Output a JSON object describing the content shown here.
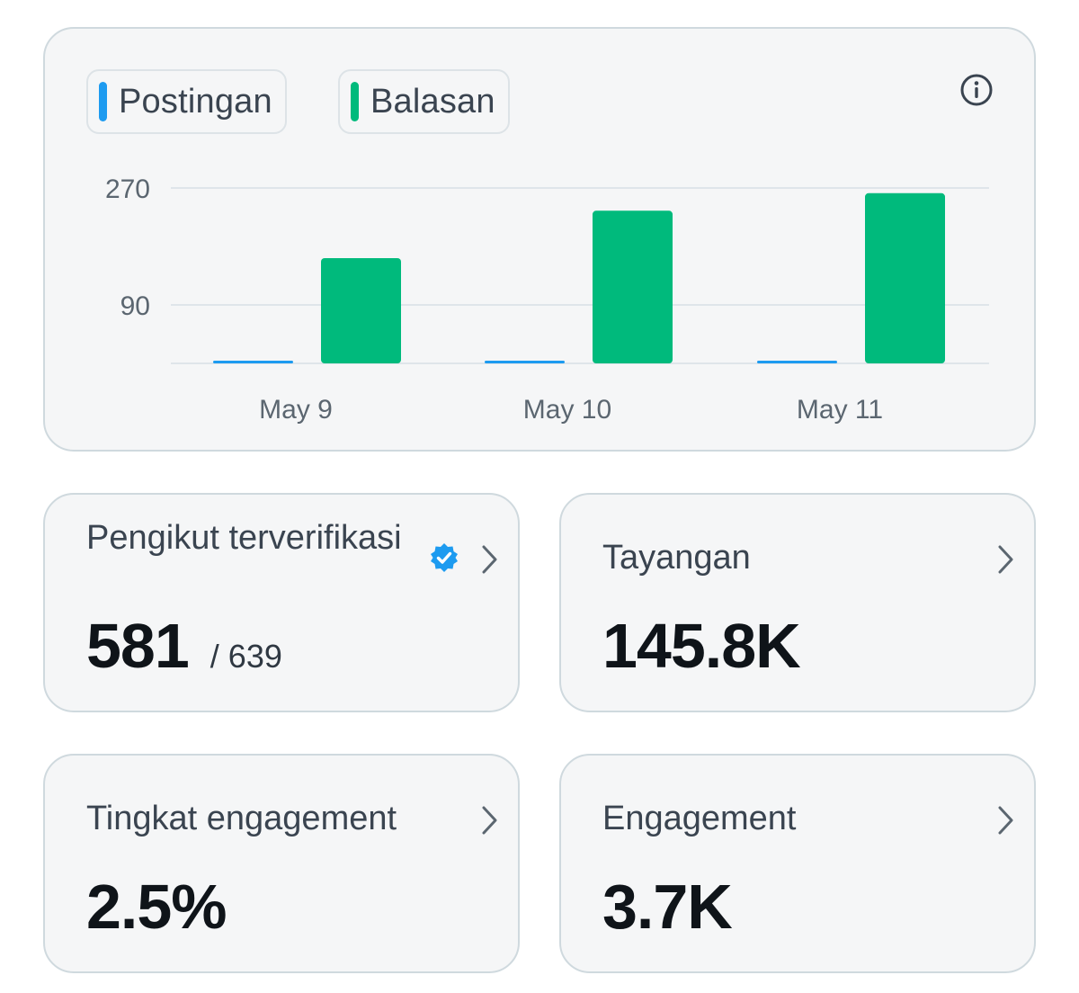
{
  "legend": [
    {
      "label": "Postingan",
      "color": "#1d9bf0"
    },
    {
      "label": "Balasan",
      "color": "#00ba7c"
    }
  ],
  "info_icon": "info-circle-icon",
  "chart_data": {
    "type": "bar",
    "categories": [
      "May 9",
      "May 10",
      "May 11"
    ],
    "series": [
      {
        "name": "Postingan",
        "color": "#1d9bf0",
        "values": [
          0,
          0,
          0
        ]
      },
      {
        "name": "Balasan",
        "color": "#00ba7c",
        "values": [
          162,
          235,
          262
        ]
      }
    ],
    "yticks": [
      90,
      270
    ],
    "ytick_labels": [
      "90",
      "270"
    ],
    "ylim": [
      0,
      290
    ],
    "grid": true
  },
  "stats": {
    "followers": {
      "title": "Pengikut terverifikasi",
      "value": "581",
      "sub": "/ 639"
    },
    "views": {
      "title": "Tayangan",
      "value": "145.8K"
    },
    "engagement_rate": {
      "title": "Tingkat engagement",
      "value": "2.5%"
    },
    "engagement": {
      "title": "Engagement",
      "value": "3.7K"
    }
  },
  "colors": {
    "verified_badge": "#1d9bf0",
    "card_background": "#f5f6f7"
  }
}
